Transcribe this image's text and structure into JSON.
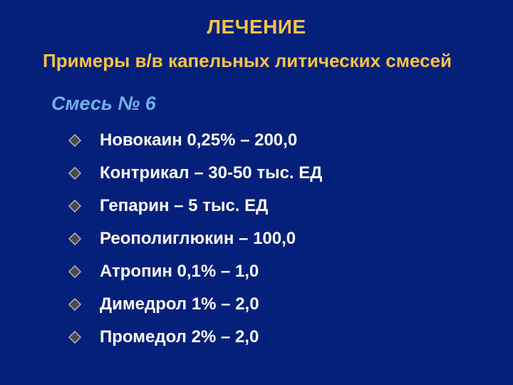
{
  "background_color": "#05207a",
  "title": {
    "text": "ЛЕЧЕНИЕ",
    "color": "#f6c24a",
    "fontsize": 28
  },
  "subtitle": {
    "text": "Примеры в/в капельных литических смесей",
    "color": "#f6c24a",
    "fontsize": 26
  },
  "mix_label": {
    "text": "Смесь № 6",
    "color": "#6fb0e6",
    "fontsize": 27
  },
  "bullet": {
    "fill": "#4a4a4a",
    "stroke": "#bfbfbf"
  },
  "item_style": {
    "color": "#ffffff",
    "fontsize": 24,
    "line_height": 38
  },
  "items": [
    "Новокаин 0,25% – 200,0",
    "Контрикал –  30-50 тыс. ЕД",
    "Гепарин –  5 тыс. ЕД",
    "Реополиглюкин – 100,0",
    "Атропин 0,1% – 1,0",
    "Димедрол 1% – 2,0",
    "Промедол 2% – 2,0"
  ]
}
